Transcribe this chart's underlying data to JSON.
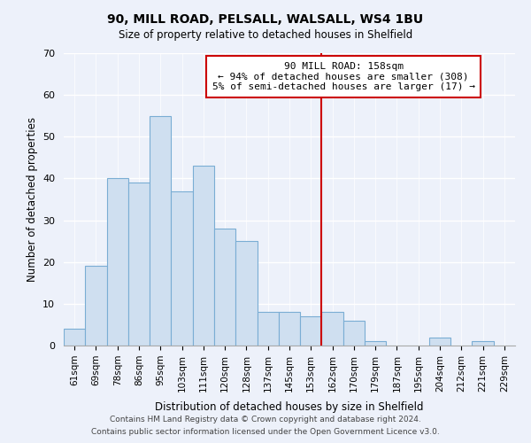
{
  "title1": "90, MILL ROAD, PELSALL, WALSALL, WS4 1BU",
  "title2": "Size of property relative to detached houses in Shelfield",
  "xlabel": "Distribution of detached houses by size in Shelfield",
  "ylabel": "Number of detached properties",
  "footer1": "Contains HM Land Registry data © Crown copyright and database right 2024.",
  "footer2": "Contains public sector information licensed under the Open Government Licence v3.0.",
  "bin_labels": [
    "61sqm",
    "69sqm",
    "78sqm",
    "86sqm",
    "95sqm",
    "103sqm",
    "111sqm",
    "120sqm",
    "128sqm",
    "137sqm",
    "145sqm",
    "153sqm",
    "162sqm",
    "170sqm",
    "179sqm",
    "187sqm",
    "195sqm",
    "204sqm",
    "212sqm",
    "221sqm",
    "229sqm"
  ],
  "values": [
    4,
    19,
    40,
    39,
    55,
    37,
    43,
    28,
    25,
    8,
    8,
    7,
    8,
    6,
    1,
    0,
    0,
    2,
    0,
    1,
    0
  ],
  "bar_color": "#cfdff0",
  "bar_edge_color": "#7aadd4",
  "ylim": [
    0,
    70
  ],
  "yticks": [
    0,
    10,
    20,
    30,
    40,
    50,
    60,
    70
  ],
  "vline_x": 11.5,
  "vline_color": "#cc0000",
  "annotation_title": "90 MILL ROAD: 158sqm",
  "annotation_line1": "← 94% of detached houses are smaller (308)",
  "annotation_line2": "5% of semi-detached houses are larger (17) →",
  "background_color": "#edf1fa"
}
